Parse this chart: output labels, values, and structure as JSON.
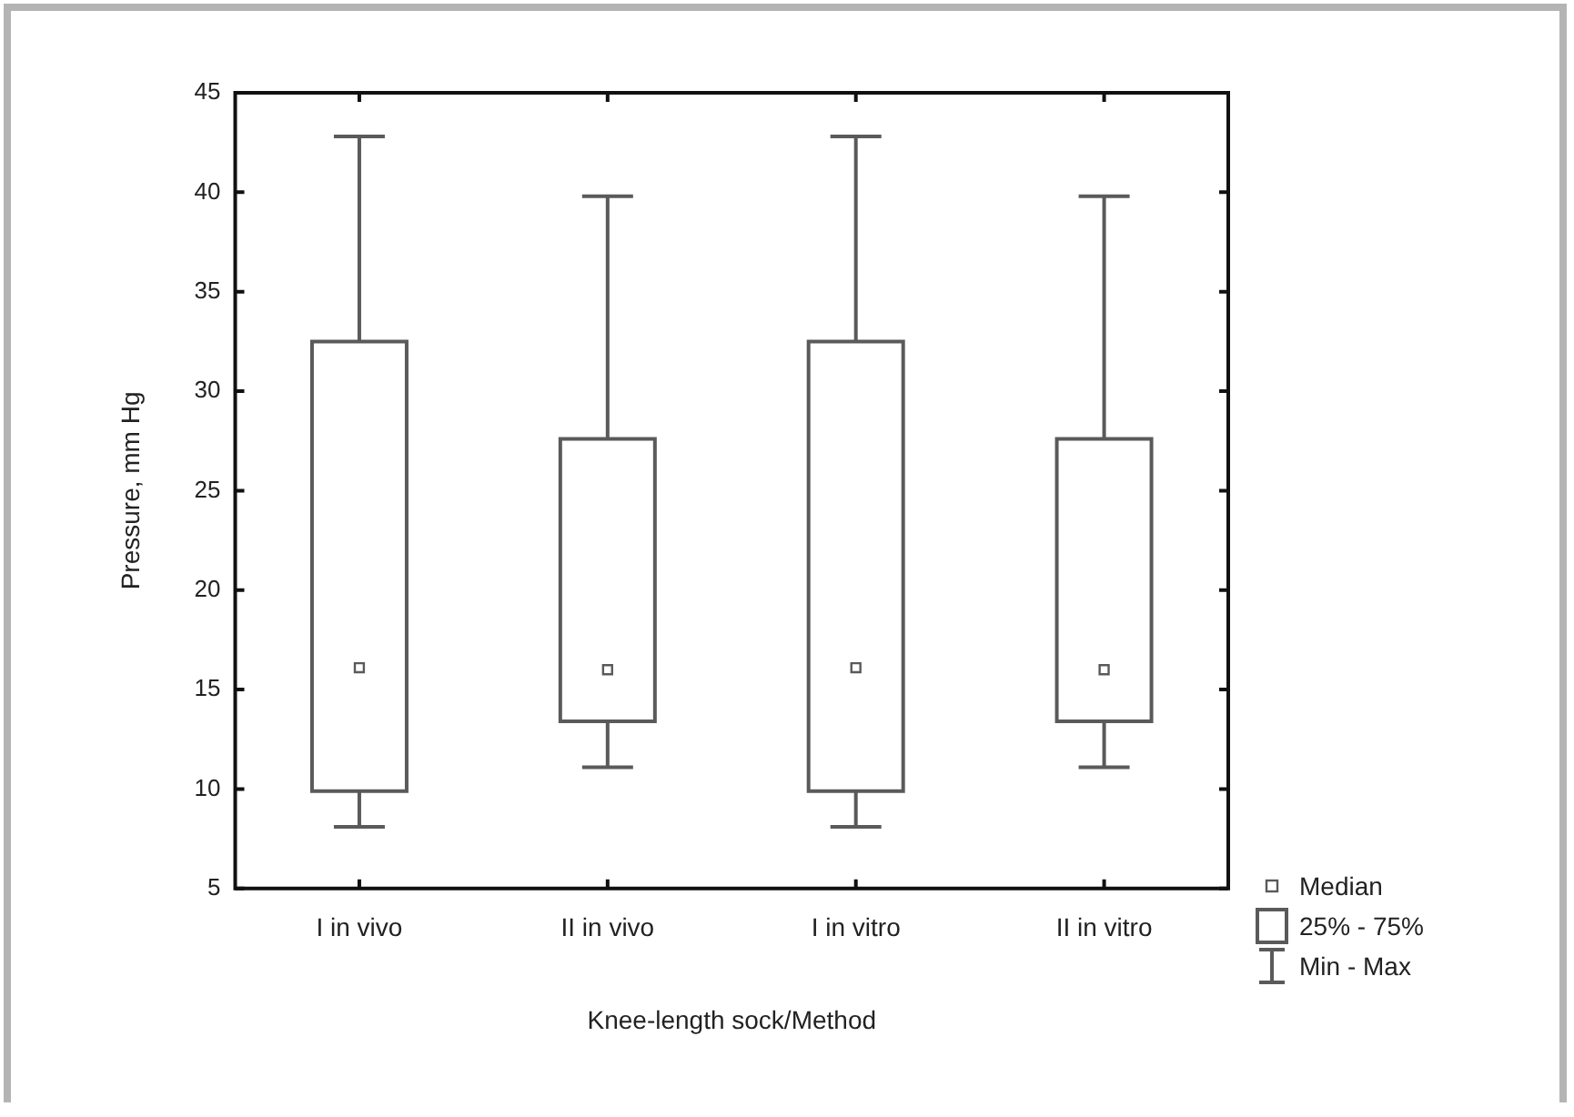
{
  "chart_data": {
    "type": "box",
    "xlabel": "Knee-length sock/Method",
    "ylabel": "Pressure, mm Hg",
    "categories": [
      "I in vivo",
      "II in vivo",
      "I in vitro",
      "II in vitro"
    ],
    "boxes": [
      {
        "low": 8.1,
        "q1": 9.9,
        "median": 16.1,
        "q3": 32.5,
        "high": 42.8
      },
      {
        "low": 11.1,
        "q1": 13.4,
        "median": 16.0,
        "q3": 27.6,
        "high": 39.8
      },
      {
        "low": 8.1,
        "q1": 9.9,
        "median": 16.1,
        "q3": 32.5,
        "high": 42.8
      },
      {
        "low": 11.1,
        "q1": 13.4,
        "median": 16.0,
        "q3": 27.6,
        "high": 39.8
      }
    ],
    "color": "#5a5a5a",
    "ylim": [
      5,
      45
    ],
    "yticks": [
      5,
      10,
      15,
      20,
      25,
      30,
      35,
      40,
      45
    ],
    "grid": false,
    "marker": "square",
    "annotations": [
      "Median",
      "25% - 75%",
      "Min - Max"
    ]
  }
}
